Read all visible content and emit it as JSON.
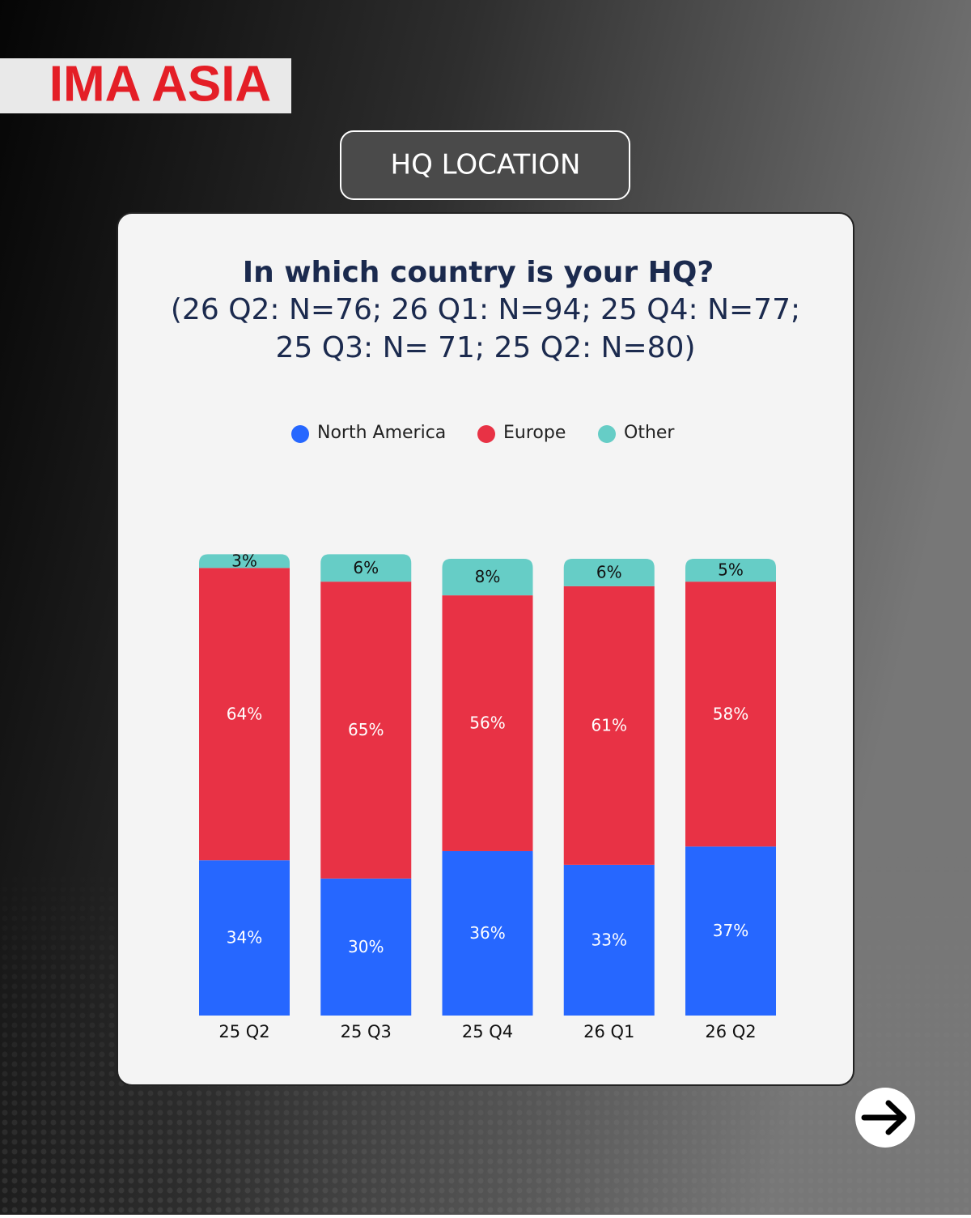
{
  "brand": {
    "logo": "IMA ASIA",
    "badge": "HQ LOCATION"
  },
  "chart_data": {
    "type": "stacked_bar",
    "title": "In which country is your HQ?",
    "subtitle": [
      "(26 Q2: N=76; 26 Q1: N=94; 25 Q4: N=77;",
      "25 Q3: N= 71; 25 Q2: N=80)"
    ],
    "categories": [
      "25 Q2",
      "25 Q3",
      "25 Q4",
      "26 Q1",
      "26 Q2"
    ],
    "series": [
      {
        "name": "North America",
        "color": "#2667ff",
        "values": [
          34,
          30,
          36,
          33,
          37
        ],
        "value_labels": [
          "34%",
          "30%",
          "36%",
          "33%",
          "37%"
        ]
      },
      {
        "name": "Europe",
        "color": "#e83245",
        "values": [
          64,
          65,
          56,
          61,
          58
        ],
        "value_labels": [
          "64%",
          "65%",
          "56%",
          "61%",
          "58%"
        ]
      },
      {
        "name": "Other",
        "color": "#66cdc6",
        "values": [
          3,
          6,
          8,
          6,
          5
        ],
        "value_labels": [
          "3%",
          "6%",
          "8%",
          "6%",
          "5%"
        ]
      }
    ],
    "legend": "top"
  }
}
